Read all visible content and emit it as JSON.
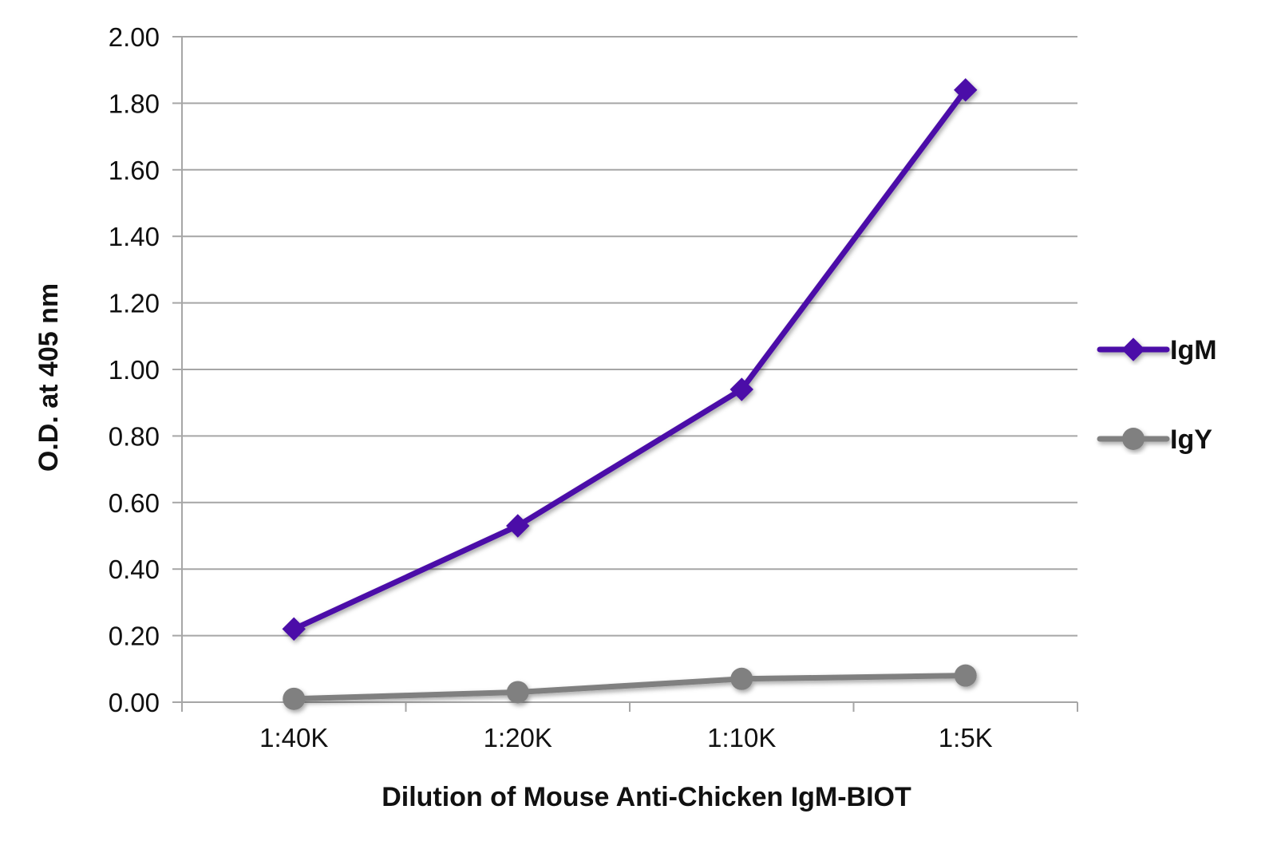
{
  "chart_data": {
    "type": "line",
    "categories": [
      "1:40K",
      "1:20K",
      "1:10K",
      "1:5K"
    ],
    "series": [
      {
        "name": "IgM",
        "values": [
          0.22,
          0.53,
          0.94,
          1.84
        ],
        "color": "#4B0BA8",
        "marker": "diamond"
      },
      {
        "name": "IgY",
        "values": [
          0.01,
          0.03,
          0.07,
          0.08
        ],
        "color": "#808080",
        "marker": "circle"
      }
    ],
    "xlabel": "Dilution of Mouse Anti-Chicken IgM-BIOT",
    "ylabel": "O.D. at 405 nm",
    "ylim": [
      0,
      2
    ],
    "yticks": [
      "0.00",
      "0.20",
      "0.40",
      "0.60",
      "0.80",
      "1.00",
      "1.20",
      "1.40",
      "1.60",
      "1.80",
      "2.00"
    ],
    "grid": true,
    "legend_position": "right"
  }
}
